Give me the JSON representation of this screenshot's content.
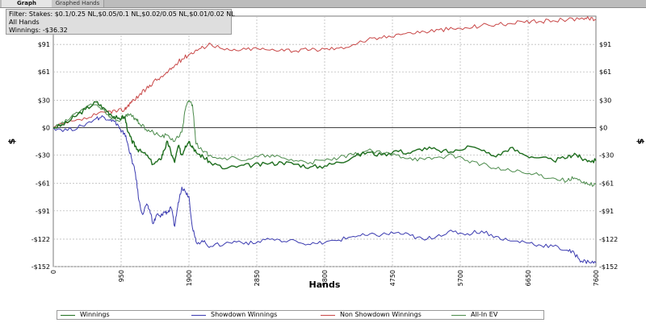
{
  "tabs": [
    {
      "label": "Graph",
      "active": true
    },
    {
      "label": "Graphed Hands",
      "active": false
    }
  ],
  "filter_info": {
    "line1": "Filter: Stakes: $0.1/0.25 NL,$0.05/0.1 NL,$0.02/0.05 NL,$0.01/0.02 NL",
    "line2": "All Hands",
    "line3": "Winnings: -$36.32"
  },
  "colors": {
    "winnings": "#1f6e1f",
    "showdown": "#3a3ab0",
    "non_showdown": "#c84646",
    "allin_ev": "#4a8a4a",
    "grid": "#bdbdbd",
    "zero_line": "#000000"
  },
  "chart_data": {
    "type": "line",
    "xlabel": "Hands",
    "ylabel": "$",
    "xlim": [
      0,
      7600
    ],
    "ylim": [
      -152,
      122
    ],
    "x_ticks": [
      0,
      950,
      1900,
      2850,
      3800,
      4750,
      5700,
      6650,
      7600
    ],
    "y_ticks": [
      {
        "value": 91,
        "label": "$91"
      },
      {
        "value": 61,
        "label": "$61"
      },
      {
        "value": 30,
        "label": "$30"
      },
      {
        "value": 0,
        "label": "$0"
      },
      {
        "value": -30,
        "label": "-$30"
      },
      {
        "value": -61,
        "label": "-$61"
      },
      {
        "value": -91,
        "label": "-$91"
      },
      {
        "value": -122,
        "label": "-$122"
      },
      {
        "value": -152,
        "label": "-$152"
      }
    ],
    "grid": true,
    "legend_position": "bottom",
    "series": [
      {
        "name": "Winnings",
        "color_key": "winnings",
        "points": [
          [
            0,
            0
          ],
          [
            150,
            3
          ],
          [
            300,
            12
          ],
          [
            450,
            20
          ],
          [
            600,
            28
          ],
          [
            700,
            22
          ],
          [
            800,
            15
          ],
          [
            900,
            10
          ],
          [
            1000,
            12
          ],
          [
            1050,
            -5
          ],
          [
            1100,
            -15
          ],
          [
            1150,
            -20
          ],
          [
            1200,
            -25
          ],
          [
            1300,
            -30
          ],
          [
            1400,
            -40
          ],
          [
            1500,
            -35
          ],
          [
            1550,
            -25
          ],
          [
            1600,
            -15
          ],
          [
            1650,
            -28
          ],
          [
            1700,
            -38
          ],
          [
            1750,
            -20
          ],
          [
            1800,
            -30
          ],
          [
            1850,
            -20
          ],
          [
            1900,
            -15
          ],
          [
            1950,
            -20
          ],
          [
            2000,
            -27
          ],
          [
            2100,
            -32
          ],
          [
            2200,
            -38
          ],
          [
            2400,
            -45
          ],
          [
            2600,
            -42
          ],
          [
            2800,
            -41
          ],
          [
            3000,
            -40
          ],
          [
            3200,
            -38
          ],
          [
            3400,
            -40
          ],
          [
            3600,
            -43
          ],
          [
            3800,
            -42
          ],
          [
            4000,
            -38
          ],
          [
            4200,
            -32
          ],
          [
            4400,
            -27
          ],
          [
            4600,
            -30
          ],
          [
            4800,
            -25
          ],
          [
            5000,
            -28
          ],
          [
            5200,
            -22
          ],
          [
            5400,
            -25
          ],
          [
            5600,
            -27
          ],
          [
            5800,
            -20
          ],
          [
            6000,
            -25
          ],
          [
            6200,
            -32
          ],
          [
            6400,
            -22
          ],
          [
            6600,
            -30
          ],
          [
            6800,
            -33
          ],
          [
            7000,
            -36
          ],
          [
            7200,
            -33
          ],
          [
            7300,
            -28
          ],
          [
            7400,
            -34
          ],
          [
            7500,
            -36
          ],
          [
            7600,
            -36.32
          ]
        ]
      },
      {
        "name": "Showdown Winnings",
        "color_key": "showdown",
        "points": [
          [
            0,
            0
          ],
          [
            200,
            -3
          ],
          [
            400,
            2
          ],
          [
            600,
            10
          ],
          [
            700,
            12
          ],
          [
            800,
            9
          ],
          [
            900,
            4
          ],
          [
            950,
            -5
          ],
          [
            1000,
            -6
          ],
          [
            1050,
            -20
          ],
          [
            1100,
            -35
          ],
          [
            1150,
            -50
          ],
          [
            1200,
            -80
          ],
          [
            1250,
            -95
          ],
          [
            1300,
            -85
          ],
          [
            1350,
            -90
          ],
          [
            1400,
            -105
          ],
          [
            1450,
            -95
          ],
          [
            1500,
            -98
          ],
          [
            1550,
            -92
          ],
          [
            1600,
            -93
          ],
          [
            1650,
            -88
          ],
          [
            1700,
            -108
          ],
          [
            1750,
            -82
          ],
          [
            1800,
            -65
          ],
          [
            1850,
            -70
          ],
          [
            1900,
            -75
          ],
          [
            1950,
            -110
          ],
          [
            2000,
            -125
          ],
          [
            2100,
            -125
          ],
          [
            2200,
            -130
          ],
          [
            2400,
            -127
          ],
          [
            2600,
            -124
          ],
          [
            2800,
            -127
          ],
          [
            3000,
            -121
          ],
          [
            3200,
            -125
          ],
          [
            3400,
            -124
          ],
          [
            3600,
            -128
          ],
          [
            3800,
            -126
          ],
          [
            4000,
            -123
          ],
          [
            4200,
            -119
          ],
          [
            4400,
            -118
          ],
          [
            4600,
            -117
          ],
          [
            4800,
            -115
          ],
          [
            5000,
            -118
          ],
          [
            5200,
            -123
          ],
          [
            5400,
            -117
          ],
          [
            5600,
            -114
          ],
          [
            5800,
            -116
          ],
          [
            6000,
            -113
          ],
          [
            6200,
            -119
          ],
          [
            6400,
            -124
          ],
          [
            6600,
            -125
          ],
          [
            6800,
            -128
          ],
          [
            7000,
            -130
          ],
          [
            7200,
            -134
          ],
          [
            7300,
            -138
          ],
          [
            7400,
            -146
          ],
          [
            7500,
            -147
          ],
          [
            7600,
            -148
          ]
        ]
      },
      {
        "name": "Non Showdown Winnings",
        "color_key": "non_showdown",
        "points": [
          [
            0,
            0
          ],
          [
            200,
            5
          ],
          [
            400,
            8
          ],
          [
            600,
            14
          ],
          [
            800,
            18
          ],
          [
            900,
            18
          ],
          [
            1000,
            20
          ],
          [
            1050,
            25
          ],
          [
            1100,
            28
          ],
          [
            1200,
            35
          ],
          [
            1300,
            42
          ],
          [
            1400,
            50
          ],
          [
            1500,
            55
          ],
          [
            1600,
            60
          ],
          [
            1700,
            68
          ],
          [
            1800,
            75
          ],
          [
            1900,
            80
          ],
          [
            2000,
            85
          ],
          [
            2100,
            88
          ],
          [
            2200,
            92
          ],
          [
            2400,
            85
          ],
          [
            2600,
            84
          ],
          [
            2800,
            87
          ],
          [
            3000,
            85
          ],
          [
            3200,
            86
          ],
          [
            3400,
            84
          ],
          [
            3600,
            85
          ],
          [
            3800,
            86
          ],
          [
            4000,
            87
          ],
          [
            4200,
            91
          ],
          [
            4400,
            96
          ],
          [
            4600,
            98
          ],
          [
            4800,
            102
          ],
          [
            5000,
            104
          ],
          [
            5200,
            105
          ],
          [
            5400,
            107
          ],
          [
            5600,
            108
          ],
          [
            5800,
            109
          ],
          [
            6000,
            112
          ],
          [
            6200,
            113
          ],
          [
            6400,
            114
          ],
          [
            6600,
            115
          ],
          [
            6800,
            116
          ],
          [
            7000,
            117
          ],
          [
            7200,
            118
          ],
          [
            7400,
            120
          ],
          [
            7500,
            119
          ],
          [
            7600,
            118
          ]
        ]
      },
      {
        "name": "All-In EV",
        "color_key": "allin_ev",
        "points": [
          [
            0,
            0
          ],
          [
            150,
            5
          ],
          [
            300,
            15
          ],
          [
            450,
            22
          ],
          [
            600,
            25
          ],
          [
            700,
            20
          ],
          [
            800,
            12
          ],
          [
            900,
            8
          ],
          [
            1000,
            10
          ],
          [
            1050,
            15
          ],
          [
            1100,
            12
          ],
          [
            1150,
            10
          ],
          [
            1200,
            5
          ],
          [
            1300,
            -2
          ],
          [
            1400,
            -5
          ],
          [
            1500,
            -10
          ],
          [
            1600,
            -8
          ],
          [
            1700,
            -15
          ],
          [
            1800,
            -5
          ],
          [
            1850,
            20
          ],
          [
            1900,
            30
          ],
          [
            1950,
            25
          ],
          [
            2000,
            -18
          ],
          [
            2100,
            -27
          ],
          [
            2200,
            -30
          ],
          [
            2400,
            -33
          ],
          [
            2600,
            -35
          ],
          [
            2800,
            -33
          ],
          [
            3000,
            -30
          ],
          [
            3200,
            -33
          ],
          [
            3400,
            -36
          ],
          [
            3600,
            -38
          ],
          [
            3800,
            -36
          ],
          [
            4000,
            -33
          ],
          [
            4200,
            -30
          ],
          [
            4400,
            -25
          ],
          [
            4600,
            -28
          ],
          [
            4800,
            -30
          ],
          [
            5000,
            -33
          ],
          [
            5200,
            -35
          ],
          [
            5400,
            -32
          ],
          [
            5600,
            -30
          ],
          [
            5800,
            -36
          ],
          [
            6000,
            -40
          ],
          [
            6200,
            -45
          ],
          [
            6400,
            -47
          ],
          [
            6600,
            -50
          ],
          [
            6800,
            -52
          ],
          [
            7000,
            -55
          ],
          [
            7200,
            -58
          ],
          [
            7300,
            -55
          ],
          [
            7400,
            -60
          ],
          [
            7500,
            -62
          ],
          [
            7600,
            -62
          ]
        ]
      }
    ]
  }
}
